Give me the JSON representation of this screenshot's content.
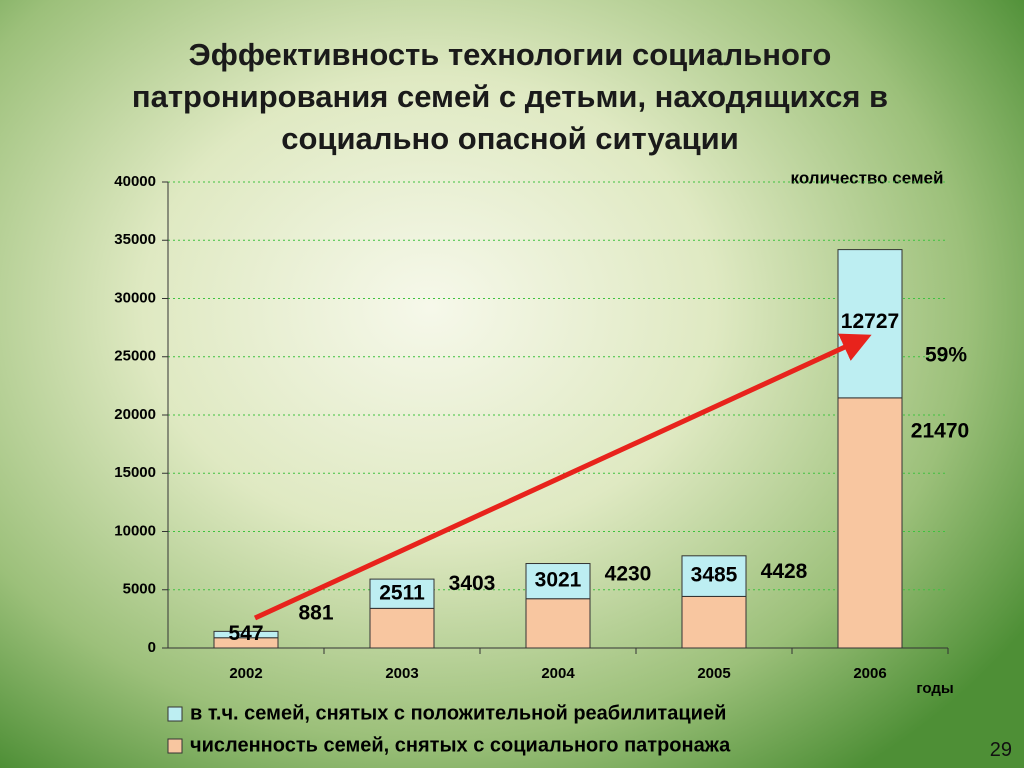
{
  "chart_data": {
    "type": "bar",
    "stacked": true,
    "title": "Эффективность технологии социального\nпатронирования семей с детьми, находящихся в\nсоциально опасной ситуации",
    "y_label": "количество семей",
    "x_label": "годы",
    "categories": [
      "2002",
      "2003",
      "2004",
      "2005",
      "2006"
    ],
    "series": [
      {
        "name": "численность семей, снятых с социального патронажа",
        "color": "#f8c6a0",
        "values": [
          881,
          3403,
          4230,
          4428,
          21470
        ]
      },
      {
        "name": "в т.ч. семей, снятых с положительной реабилитацией",
        "color": "#bdeef2",
        "values": [
          547,
          2511,
          3021,
          3485,
          12727
        ]
      }
    ],
    "annotation": "59%",
    "ylim": [
      0,
      40000
    ],
    "yticks": [
      0,
      5000,
      10000,
      15000,
      20000,
      25000,
      30000,
      35000,
      40000
    ],
    "grid": true
  },
  "slide": {
    "page_number": "29"
  }
}
